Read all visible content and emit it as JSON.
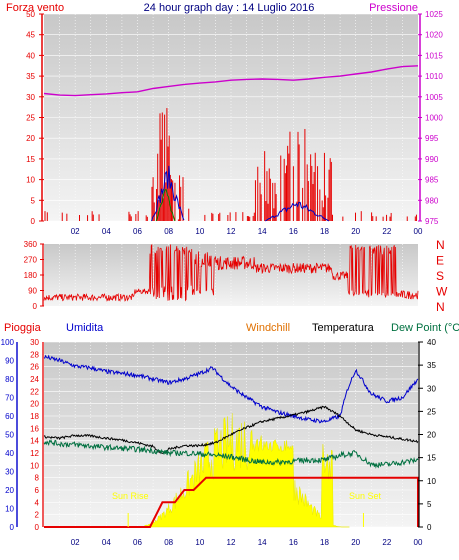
{
  "header": {
    "left_title": "Forza vento",
    "center_title": "24 hour graph day : 14 Luglio 2016",
    "right_title": "Pressione"
  },
  "colors": {
    "wind": "#e60000",
    "wind_blue": "#0000c0",
    "wind_green": "#008000",
    "pressure": "#cc00cc",
    "direction": "#e60000",
    "rain": "#e60000",
    "humidity": "#0000cc",
    "windchill": "#e07000",
    "temperature": "#000000",
    "dewpoint": "#007040",
    "solar": "#ffff00",
    "plot_bg": "#d8d8d8",
    "grid": "#ffffff",
    "time_label": "#000080"
  },
  "bottom_header": {
    "rain": "Pioggia",
    "humidity": "Umidita",
    "windchill": "Windchill",
    "temperature": "Temperatura",
    "dewpoint": "Dew Point (°C"
  },
  "annotations": {
    "sunrise": "Sun Rise",
    "sunset": "Sun Set"
  },
  "chart_data": [
    {
      "type": "line",
      "id": "wind-pressure",
      "x_ticks": [
        "02",
        "04",
        "06",
        "08",
        "10",
        "12",
        "14",
        "16",
        "18",
        "20",
        "22",
        "00"
      ],
      "y_left_ticks": [
        0,
        5,
        10,
        15,
        20,
        25,
        30,
        35,
        40,
        45,
        50
      ],
      "y_left_range": [
        0,
        50
      ],
      "y_right_ticks": [
        975,
        980,
        985,
        990,
        995,
        1000,
        1005,
        1010,
        1015,
        1020,
        1025
      ],
      "y_right_range": [
        975,
        1025
      ],
      "x_range_hours": [
        0,
        24
      ],
      "series": [
        {
          "key": "pressure",
          "hours": [
            0,
            1,
            2,
            3,
            4,
            5,
            6,
            7,
            8,
            9,
            10,
            11,
            12,
            13,
            14,
            15,
            16,
            17,
            18,
            19,
            20,
            21,
            22,
            23,
            24
          ],
          "values": [
            1005.8,
            1005.4,
            1005.3,
            1005.5,
            1005.7,
            1006,
            1006.2,
            1007,
            1007.5,
            1008,
            1008.3,
            1008.6,
            1009,
            1009.2,
            1009.3,
            1009.2,
            1009,
            1009.3,
            1009.7,
            1010,
            1010.5,
            1011,
            1011.7,
            1012.3,
            1012.5
          ]
        }
      ]
    },
    {
      "type": "line",
      "id": "wind-direction",
      "y_left_ticks": [
        0,
        90,
        180,
        270,
        360
      ],
      "y_left_range": [
        0,
        360
      ],
      "y_right_labels": [
        "N",
        "W",
        "S",
        "E",
        "N"
      ],
      "x_range_hours": [
        0,
        24
      ]
    },
    {
      "type": "line",
      "id": "weather",
      "x_ticks": [
        "02",
        "04",
        "06",
        "08",
        "10",
        "12",
        "14",
        "16",
        "18",
        "20",
        "22",
        "00"
      ],
      "y_left_humidity_ticks": [
        0,
        10,
        20,
        30,
        40,
        50,
        60,
        70,
        80,
        90,
        100
      ],
      "y_left_humidity_range": [
        0,
        100
      ],
      "y_left_rain_ticks": [
        0,
        2,
        4,
        6,
        8,
        10,
        12,
        14,
        16,
        18,
        20,
        22,
        24,
        26,
        28,
        30
      ],
      "y_left_rain_range": [
        0,
        30
      ],
      "y_right_ticks": [
        0,
        5,
        10,
        15,
        20,
        25,
        30,
        35,
        40
      ],
      "y_right_range": [
        0,
        40
      ],
      "x_range_hours": [
        0,
        24
      ],
      "series": [
        {
          "key": "rain",
          "hours": [
            0,
            6.8,
            7.2,
            7.6,
            8.4,
            9,
            9.6,
            10.4,
            24
          ],
          "values": [
            0,
            0,
            2,
            4,
            4,
            6,
            6,
            8,
            8
          ]
        },
        {
          "key": "humidity",
          "hours": [
            0,
            1,
            2,
            3,
            4,
            5,
            6,
            7,
            8,
            9,
            10,
            10.8,
            11.5,
            12,
            13,
            14,
            15,
            16,
            17,
            18,
            19,
            19.5,
            20,
            21,
            22,
            23,
            24
          ],
          "values": [
            92,
            90,
            87,
            86,
            84,
            83,
            82,
            80,
            78,
            80,
            83,
            86,
            80,
            76,
            70,
            65,
            62,
            60,
            58,
            57,
            60,
            75,
            85,
            72,
            68,
            70,
            80
          ]
        },
        {
          "key": "temperature",
          "hours": [
            0,
            1,
            2,
            3,
            4,
            5,
            6,
            7,
            7.6,
            8,
            9,
            10,
            11,
            12,
            13,
            14,
            15,
            16,
            17,
            18,
            19,
            20,
            21,
            22,
            23,
            24
          ],
          "values": [
            19.5,
            19.2,
            19.8,
            19.7,
            19.2,
            18.8,
            18.2,
            17.4,
            15.8,
            16.8,
            17.6,
            17.6,
            18.2,
            20,
            21.5,
            22.8,
            23.5,
            24.2,
            25,
            26,
            24,
            21,
            20,
            19.5,
            19,
            18.5
          ]
        },
        {
          "key": "dewpoint",
          "hours": [
            0,
            1,
            2,
            3,
            4,
            5,
            6,
            7,
            8,
            9,
            10,
            11,
            12,
            13,
            14,
            15,
            16,
            17,
            18,
            19,
            20,
            21,
            22,
            23,
            24
          ],
          "values": [
            18.5,
            18,
            17.8,
            17.5,
            17.2,
            17,
            16.8,
            16.5,
            16,
            16,
            15.8,
            15.5,
            15.2,
            14.5,
            14,
            14,
            14.2,
            14.5,
            14.5,
            15.5,
            16,
            13.5,
            13.5,
            14,
            14.5
          ]
        }
      ]
    }
  ]
}
